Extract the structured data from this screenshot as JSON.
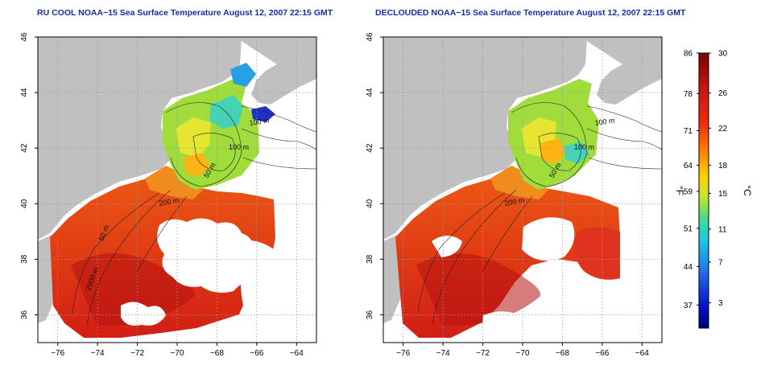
{
  "chart_data": [
    {
      "type": "heatmap",
      "title": "RU COOL NOAA−15 Sea Surface Temperature August 12, 2007 22:15 GMT",
      "xlabel": "",
      "ylabel": "",
      "xlim": [
        -77,
        -63
      ],
      "ylim": [
        35,
        46
      ],
      "x_ticks": [
        -76,
        -74,
        -72,
        -70,
        -68,
        -66,
        -64
      ],
      "y_ticks": [
        36,
        38,
        40,
        42,
        44,
        46
      ],
      "grid": true,
      "contour_labels": [
        "100 m",
        "100 m",
        "50 m",
        "200 m",
        "50 m",
        "2000 m"
      ]
    },
    {
      "type": "heatmap",
      "title": "DECLOUDED NOAA−15 Sea Surface Temperature August 12, 2007 22:15 GMT",
      "xlabel": "",
      "ylabel": "",
      "xlim": [
        -77,
        -63
      ],
      "ylim": [
        35,
        46
      ],
      "x_ticks": [
        -76,
        -74,
        -72,
        -70,
        -68,
        -66,
        -64
      ],
      "y_ticks": [
        36,
        38,
        40,
        42,
        44,
        46
      ],
      "grid": true,
      "contour_labels": [
        "100 m",
        "100 m",
        "50 m",
        "200 m"
      ]
    }
  ],
  "colorbar": {
    "f_ticks": [
      "86",
      "78",
      "71",
      "64",
      "59",
      "51",
      "44",
      "37"
    ],
    "c_ticks": [
      "30",
      "26",
      "22",
      "18",
      "15",
      "11",
      "7",
      "3"
    ],
    "f_unit": "°F",
    "c_unit": "°C",
    "colors": [
      "#7a0000",
      "#c41414",
      "#ee2a10",
      "#ff7a00",
      "#ffd200",
      "#c8e628",
      "#46dc8c",
      "#1ec8e6",
      "#1e6ee6",
      "#0a10c8",
      "#00007a"
    ]
  }
}
